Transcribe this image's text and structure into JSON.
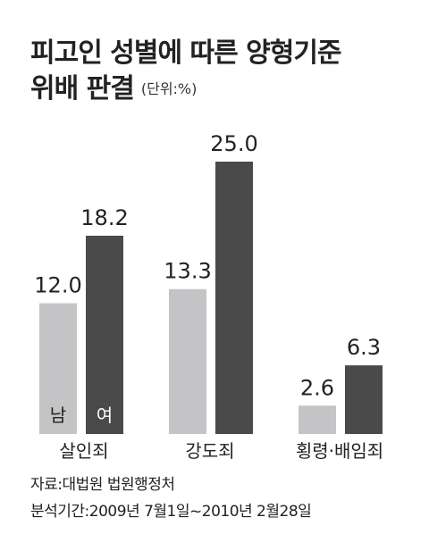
{
  "title_line1": "피고인 성별에 따른 양형기준",
  "title_line2": "위배 판결",
  "unit": "(단위:%)",
  "chart_data": {
    "type": "bar",
    "title": "피고인 성별에 따른 양형기준 위배 판결",
    "unit": "(단위:%)",
    "categories": [
      "살인죄",
      "강도죄",
      "횡령·배임죄"
    ],
    "series": [
      {
        "name": "남",
        "values": [
          12.0,
          13.3,
          2.6
        ],
        "color": "#c4c4c6"
      },
      {
        "name": "여",
        "values": [
          18.2,
          25.0,
          6.3
        ],
        "color": "#4a4a4a"
      }
    ],
    "legend_labels_in_first_group": true,
    "ylim": [
      0,
      25
    ],
    "grid": false,
    "axes_visible": false
  },
  "source": "자료:대법원 법원행정처",
  "period": "분석기간:2009년 7월1일~2010년 2월28일"
}
